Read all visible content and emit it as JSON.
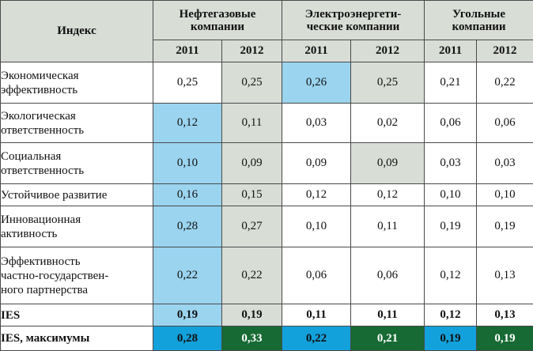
{
  "header": {
    "index_label": "Индекс",
    "groups": [
      {
        "label_line1": "Нефтегазовые",
        "label_line2": "компании"
      },
      {
        "label_line1": "Электроэнергети-",
        "label_line2": "ческие компании"
      },
      {
        "label_line1": "Угольные",
        "label_line2": "компании"
      }
    ],
    "years": [
      "2011",
      "2012",
      "2011",
      "2012",
      "2011",
      "2012"
    ]
  },
  "rows": [
    {
      "label": [
        "Экономическая",
        "эффективность"
      ],
      "values": [
        "0,25",
        "0,25",
        "0,26",
        "0,25",
        "0,21",
        "0,22"
      ]
    },
    {
      "label": [
        "Экологическая",
        "ответственность"
      ],
      "values": [
        "0,12",
        "0,11",
        "0,03",
        "0,02",
        "0,06",
        "0,06"
      ]
    },
    {
      "label": [
        "Социальная",
        "ответственность"
      ],
      "values": [
        "0,10",
        "0,09",
        "0,09",
        "0,09",
        "0,03",
        "0,03"
      ]
    },
    {
      "label": [
        "Устойчивое развитие"
      ],
      "values": [
        "0,16",
        "0,15",
        "0,12",
        "0,12",
        "0,10",
        "0,10"
      ]
    },
    {
      "label": [
        "Инновационная",
        "активность"
      ],
      "values": [
        "0,28",
        "0,27",
        "0,10",
        "0,11",
        "0,19",
        "0,19"
      ]
    },
    {
      "label": [
        "Эффективность",
        "частно-государствен-",
        "ного партнерства"
      ],
      "values": [
        "0,22",
        "0,22",
        "0,06",
        "0,06",
        "0,12",
        "0,13"
      ]
    }
  ],
  "ies": {
    "label": "IES",
    "values": [
      "0,19",
      "0,19",
      "0,11",
      "0,11",
      "0,12",
      "0,13"
    ]
  },
  "ies_max": {
    "label": "IES, максимумы",
    "values": [
      "0,28",
      "0,33",
      "0,22",
      "0,21",
      "0,19",
      "0,19"
    ]
  },
  "colors": {
    "header_bg": "#d8ddd6",
    "light_blue": "#9bd4ef",
    "light_gray": "#d8ddd6",
    "deep_blue": "#13a1dc",
    "dark_green": "#176a33"
  }
}
